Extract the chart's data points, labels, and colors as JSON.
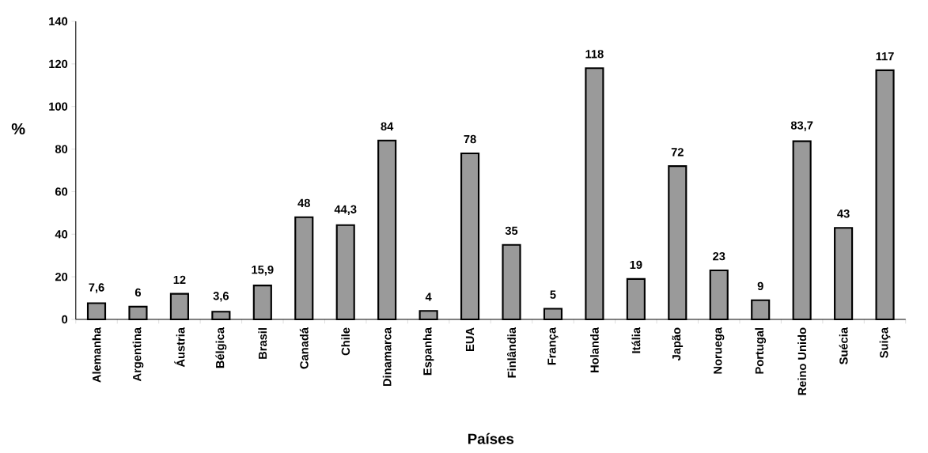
{
  "chart_data": {
    "type": "bar",
    "xlabel": "Países",
    "ylabel": "%",
    "categories": [
      "Alemanha",
      "Argentina",
      "Áustria",
      "Bélgica",
      "Brasil",
      "Canadá",
      "Chile",
      "Dinamarca",
      "Espanha",
      "EUA",
      "Finlândia",
      "França",
      "Holanda",
      "Itália",
      "Japão",
      "Noruega",
      "Portugal",
      "Reino Unido",
      "Suécia",
      "Suiça"
    ],
    "values": [
      7.6,
      6,
      12,
      3.6,
      15.9,
      48,
      44.3,
      84,
      4,
      78,
      35,
      5,
      118,
      19,
      72,
      23,
      9,
      83.7,
      43,
      117
    ],
    "value_labels": [
      "7,6",
      "6",
      "12",
      "3,6",
      "15,9",
      "48",
      "44,3",
      "84",
      "4",
      "78",
      "35",
      "5",
      "118",
      "19",
      "72",
      "23",
      "9",
      "83,7",
      "43",
      "117"
    ],
    "color": "#9a9a9a",
    "ylim": [
      0,
      140
    ],
    "yticks": [
      0,
      20,
      40,
      60,
      80,
      100,
      120,
      140
    ]
  }
}
